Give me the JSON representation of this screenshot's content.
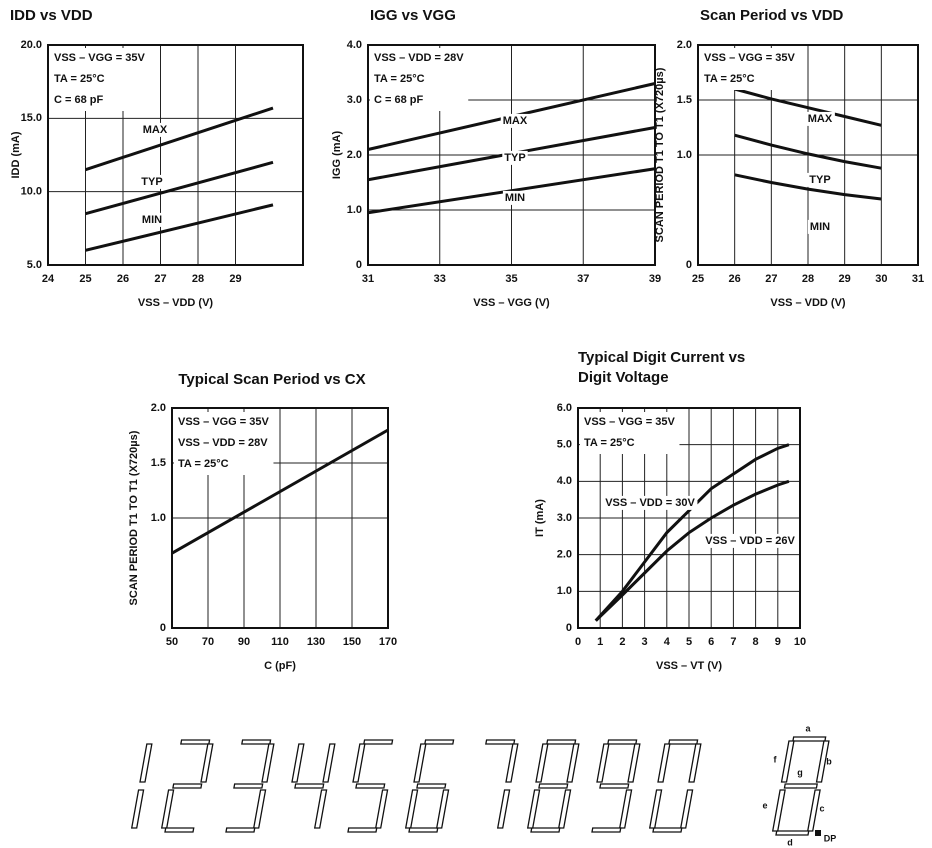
{
  "chart_data": [
    {
      "type": "line",
      "title": "IDD vs VDD",
      "xlabel": "VSS – VDD (V)",
      "ylabel": "IDD (mA)",
      "xlim": [
        24,
        30.8
      ],
      "xticks": [
        24,
        25,
        26,
        27,
        28,
        29
      ],
      "ylim": [
        5,
        20
      ],
      "yticks": [
        {
          "value": 5,
          "label": "5.0"
        },
        {
          "value": 10,
          "label": "10.0"
        },
        {
          "value": 15,
          "label": "15.0"
        },
        {
          "value": 20,
          "label": "20.0"
        }
      ],
      "grid": true,
      "annotations": [
        "VSS – VGG = 35V",
        "TA = 25°C",
        "C = 68 pF"
      ],
      "x": [
        25,
        30
      ],
      "series": [
        {
          "name": "MAX",
          "color": "#111111",
          "values": [
            11.5,
            15.7
          ]
        },
        {
          "name": "TYP",
          "color": "#111111",
          "values": [
            8.5,
            12
          ]
        },
        {
          "name": "MIN",
          "color": "#111111",
          "values": [
            6,
            9.1
          ]
        }
      ]
    },
    {
      "type": "line",
      "title": "IGG vs VGG",
      "xlabel": "VSS – VGG (V)",
      "ylabel": "IGG (mA)",
      "xlim": [
        31,
        39
      ],
      "xticks": [
        31,
        33,
        35,
        37,
        39
      ],
      "ylim": [
        0,
        4
      ],
      "yticks": [
        0,
        {
          "value": 1,
          "label": "1.0"
        },
        {
          "value": 2,
          "label": "2.0"
        },
        {
          "value": 3,
          "label": "3.0"
        },
        {
          "value": 4,
          "label": "4.0"
        }
      ],
      "grid": true,
      "annotations": [
        "VSS – VDD = 28V",
        "TA = 25°C",
        "C = 68 pF"
      ],
      "x": [
        31,
        39
      ],
      "series": [
        {
          "name": "MAX",
          "color": "#111111",
          "values": [
            2.1,
            3.3
          ]
        },
        {
          "name": "TYP",
          "color": "#111111",
          "values": [
            1.55,
            2.5
          ]
        },
        {
          "name": "MIN",
          "color": "#111111",
          "values": [
            0.95,
            1.75
          ]
        }
      ]
    },
    {
      "type": "line",
      "title": "Scan Period vs VDD",
      "xlabel": "VSS – VDD (V)",
      "ylabel": "SCAN PERIOD T1 TO T1 (X720µs)",
      "xlim": [
        25,
        31
      ],
      "xticks": [
        25,
        26,
        27,
        28,
        29,
        30,
        31
      ],
      "ylim": [
        0,
        2
      ],
      "yticks": [
        0,
        {
          "value": 1,
          "label": "1.0"
        },
        1.5,
        {
          "value": 2,
          "label": "2.0"
        }
      ],
      "grid": true,
      "annotations": [
        "VSS – VGG = 35V",
        "TA = 25°C"
      ],
      "x": [
        26,
        27,
        28,
        29,
        30
      ],
      "series": [
        {
          "name": "MAX",
          "color": "#111111",
          "values": [
            1.6,
            1.51,
            1.43,
            1.35,
            1.27
          ]
        },
        {
          "name": "TYP",
          "color": "#111111",
          "values": [
            1.18,
            1.09,
            1.01,
            0.94,
            0.88
          ]
        },
        {
          "name": "MIN",
          "color": "#111111",
          "values": [
            0.82,
            0.75,
            0.69,
            0.64,
            0.6
          ]
        }
      ]
    },
    {
      "type": "line",
      "title": "Typical Scan Period vs CX",
      "xlabel": "C (pF)",
      "ylabel": "SCAN PERIOD T1 TO T1 (X720µs)",
      "xlim": [
        50,
        170
      ],
      "xticks": [
        50,
        70,
        90,
        110,
        130,
        150,
        170
      ],
      "ylim": [
        0,
        2
      ],
      "yticks": [
        0,
        {
          "value": 1,
          "label": "1.0"
        },
        1.5,
        {
          "value": 2,
          "label": "2.0"
        }
      ],
      "grid": true,
      "annotations": [
        "VSS – VGG = 35V",
        "VSS – VDD = 28V",
        "TA = 25°C"
      ],
      "x": [
        50,
        170
      ],
      "series": [
        {
          "color": "#111111",
          "values": [
            0.68,
            1.8
          ]
        }
      ]
    },
    {
      "type": "line",
      "title": [
        "Typical Digit Current vs",
        "Digit Voltage"
      ],
      "xlabel": "VSS – VT (V)",
      "ylabel": "IT (mA)",
      "xlim": [
        0,
        10
      ],
      "xticks": [
        0,
        1,
        2,
        3,
        4,
        5,
        6,
        7,
        8,
        9,
        10
      ],
      "ylim": [
        0,
        6
      ],
      "yticks": [
        0,
        {
          "value": 1,
          "label": "1.0"
        },
        {
          "value": 2,
          "label": "2.0"
        },
        {
          "value": 3,
          "label": "3.0"
        },
        {
          "value": 4,
          "label": "4.0"
        },
        {
          "value": 5,
          "label": "5.0"
        },
        {
          "value": 6,
          "label": "6.0"
        }
      ],
      "grid": true,
      "annotations": [
        "VSS – VGG = 35V",
        "TA = 25°C"
      ],
      "x": [
        0.8,
        2,
        3,
        4,
        5,
        6,
        7,
        8,
        9,
        9.5
      ],
      "series": [
        {
          "name": "VSS – VDD = 30V",
          "color": "#111111",
          "values": [
            0.2,
            1.0,
            1.8,
            2.6,
            3.2,
            3.8,
            4.2,
            4.6,
            4.9,
            5.0
          ]
        },
        {
          "name": "VSS – VDD = 26V",
          "color": "#111111",
          "values": [
            0.2,
            0.9,
            1.5,
            2.1,
            2.6,
            3.0,
            3.35,
            3.65,
            3.9,
            4.0
          ]
        }
      ]
    }
  ],
  "segment_diagram": {
    "labels": [
      "a",
      "b",
      "c",
      "d",
      "e",
      "f",
      "g",
      "DP"
    ]
  }
}
